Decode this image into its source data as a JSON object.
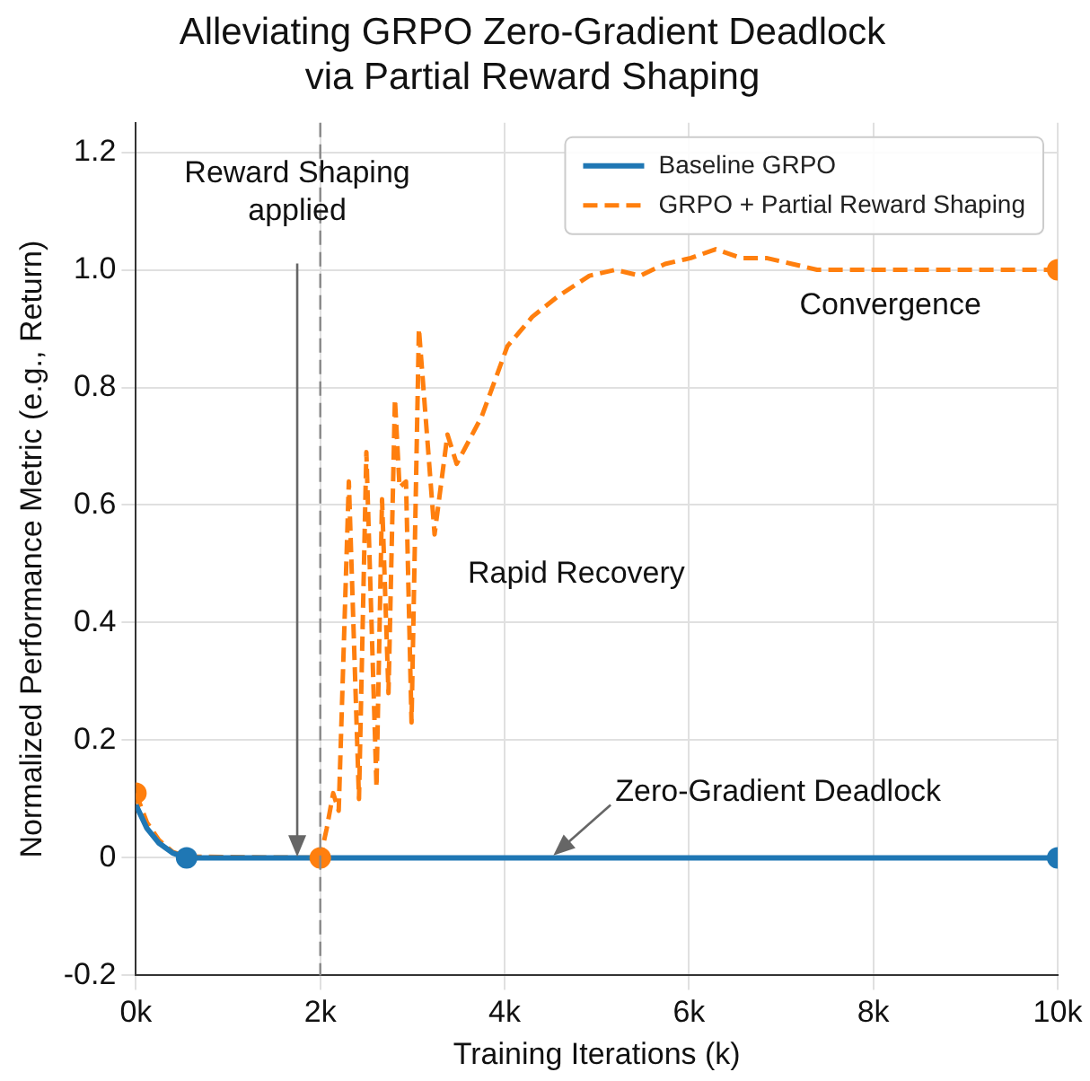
{
  "chart_data": {
    "type": "line",
    "title": "Alleviating GRPO Zero-Gradient Deadlock\nvia Partial Reward Shaping",
    "xlabel": "Training Iterations (k)",
    "ylabel": "Normalized Performance Metric (e.g., Return)",
    "xlim": [
      0,
      10
    ],
    "xticks": [
      {
        "value": 0,
        "label": "0k"
      },
      {
        "value": 2,
        "label": "2k"
      },
      {
        "value": 4,
        "label": "4k"
      },
      {
        "value": 6,
        "label": "6k"
      },
      {
        "value": 8,
        "label": "8k"
      },
      {
        "value": 10,
        "label": "10k"
      }
    ],
    "ylim": [
      -0.2,
      1.25
    ],
    "yticks": [
      -0.2,
      0,
      0.2,
      0.4,
      0.6,
      0.8,
      {
        "value": 1,
        "label": "1.0"
      },
      1.2
    ],
    "series": [
      {
        "name": "Baseline GRPO",
        "color": "#1f77b4",
        "line_style": "solid",
        "marker": "none",
        "x": [
          0,
          0.12,
          0.25,
          0.4,
          0.55,
          2,
          10
        ],
        "values": [
          0.09,
          0.05,
          0.025,
          0.008,
          0,
          0,
          0
        ]
      },
      {
        "name": "GRPO + Partial Reward Shaping",
        "color": "#ff7f0e",
        "line_style": "dashed",
        "marker": "none",
        "x": [
          0,
          0.12,
          0.25,
          0.4,
          0.55,
          2,
          2.07,
          2.14,
          2.2,
          2.31,
          2.42,
          2.5,
          2.61,
          2.67,
          2.74,
          2.81,
          2.86,
          2.93,
          2.99,
          3.07,
          3.24,
          3.38,
          3.48,
          3.75,
          4.03,
          4.3,
          4.58,
          4.92,
          5.2,
          5.47,
          5.74,
          6.02,
          6.29,
          6.57,
          6.84,
          7.12,
          7.39,
          10
        ],
        "values": [
          0.11,
          0.06,
          0.03,
          0.01,
          0.002,
          0,
          0.05,
          0.11,
          0.08,
          0.64,
          0.1,
          0.69,
          0.12,
          0.61,
          0.28,
          0.78,
          0.63,
          0.64,
          0.23,
          0.9,
          0.55,
          0.72,
          0.67,
          0.75,
          0.87,
          0.92,
          0.955,
          0.99,
          1.0,
          0.99,
          1.01,
          1.02,
          1.035,
          1.02,
          1.02,
          1.01,
          1.0,
          1.0
        ]
      },
      {
        "type": "scatter",
        "color": "#1f77b4",
        "x": [
          0.55,
          10
        ],
        "values": [
          0,
          0
        ]
      },
      {
        "type": "scatter",
        "color": "#ff7f0e",
        "x": [
          0,
          2,
          10
        ],
        "values": [
          0.11,
          0,
          1
        ]
      }
    ],
    "ref_lines": [
      {
        "axis": "x",
        "value": 2,
        "color": "#888888",
        "line_style": "dashed"
      }
    ],
    "annotations": [
      "Reward Shaping\napplied",
      "Rapid Recovery",
      "Convergence",
      {
        "text": "Zero-Gradient Deadlock",
        "x": 4.5,
        "y": 0
      }
    ],
    "legend": "top right",
    "grid": true,
    "marker": "circle"
  }
}
